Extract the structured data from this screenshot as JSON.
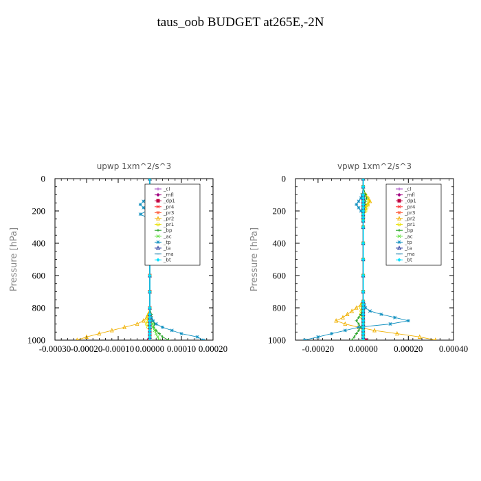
{
  "title": "taus_oob  BUDGET at265E,-2N",
  "chart_data": [
    {
      "type": "line",
      "title": "upwp   1xm^2/s^3",
      "ylabel": "Pressure [hPa]",
      "xlim": [
        -0.0003,
        0.0002
      ],
      "ylim": [
        1000,
        0
      ],
      "xticks": [
        -0.0003,
        -0.0002,
        -0.0001,
        0.0,
        0.0001,
        0.0002
      ],
      "xtick_labels": [
        "-0.00030",
        "-0.00020",
        "-0.00010",
        "0.00000",
        "0.00010",
        "0.00020"
      ],
      "yticks": [
        0,
        200,
        400,
        600,
        800,
        1000
      ],
      "ytick_labels": [
        "0",
        "200",
        "400",
        "600",
        "800",
        "1000"
      ],
      "legend_position": "top-right",
      "pressure": [
        0,
        50,
        100,
        120,
        140,
        160,
        180,
        200,
        220,
        240,
        260,
        300,
        350,
        400,
        500,
        600,
        700,
        800,
        840,
        860,
        880,
        900,
        920,
        940,
        960,
        980,
        1000
      ],
      "series": [
        {
          "name": "_cl",
          "color": "#a040c0",
          "marker": "+",
          "values": [
            0,
            0,
            0,
            0,
            0,
            0,
            0,
            0,
            0,
            0,
            0,
            0,
            0,
            0,
            0,
            0,
            0,
            0,
            0,
            0,
            0,
            0,
            0,
            0,
            0,
            0,
            0
          ]
        },
        {
          "name": "_mfl",
          "color": "#a00080",
          "marker": "diamond",
          "values": [
            0,
            0,
            0,
            0,
            0,
            0,
            0,
            0,
            0,
            0,
            0,
            0,
            0,
            0,
            0,
            0,
            0,
            0,
            0,
            0,
            0,
            0,
            0,
            0,
            0,
            0,
            0
          ]
        },
        {
          "name": "_dp1",
          "color": "#c00040",
          "marker": "square",
          "values": [
            0,
            0,
            0,
            0,
            0,
            0,
            0,
            0,
            0,
            0,
            0,
            0,
            0,
            0,
            0,
            0,
            0,
            0,
            0,
            0,
            0,
            0,
            0,
            0,
            0,
            0,
            -3e-06
          ]
        },
        {
          "name": "_pr4",
          "color": "#ff3030",
          "marker": "x",
          "values": [
            0,
            0,
            0,
            0,
            0,
            0,
            0,
            0,
            0,
            0,
            0,
            0,
            0,
            0,
            0,
            0,
            0,
            0,
            0,
            0,
            0,
            0,
            0,
            0,
            0,
            0,
            0
          ]
        },
        {
          "name": "_pr3",
          "color": "#ff6040",
          "marker": "star",
          "values": [
            0,
            0,
            0,
            0,
            0,
            0,
            0,
            0,
            0,
            0,
            0,
            0,
            0,
            0,
            0,
            0,
            0,
            0,
            0,
            0,
            0,
            0,
            0,
            0,
            0,
            0,
            0
          ]
        },
        {
          "name": "_pr2",
          "color": "#f0b000",
          "marker": "triangle",
          "values": [
            0,
            0,
            1e-05,
            1.5e-05,
            2e-05,
            1e-05,
            2e-05,
            1.5e-05,
            5e-06,
            2e-06,
            0,
            0,
            0,
            0,
            0,
            0,
            0,
            0,
            -5e-06,
            -1e-05,
            -2e-05,
            -4e-05,
            -8e-05,
            -0.00012,
            -0.00016,
            -0.0002,
            -0.00023
          ]
        },
        {
          "name": "_pr1",
          "color": "#e8e000",
          "marker": "circle",
          "values": [
            0,
            0,
            8e-06,
            1e-05,
            1.5e-05,
            2e-05,
            2.5e-05,
            2e-05,
            1e-05,
            5e-06,
            0,
            0,
            0,
            0,
            0,
            0,
            0,
            0,
            -3e-06,
            -5e-06,
            -8e-06,
            -1e-05,
            -5e-06,
            0,
            0,
            0,
            0
          ]
        },
        {
          "name": "_bp",
          "color": "#20a020",
          "marker": "+",
          "values": [
            0,
            0,
            1e-05,
            1.5e-05,
            1e-05,
            5e-06,
            8e-06,
            6e-06,
            3e-06,
            0,
            0,
            0,
            0,
            0,
            0,
            0,
            0,
            0,
            5e-06,
            5e-06,
            1e-05,
            1.5e-05,
            1.2e-05,
            2e-05,
            3e-05,
            4e-05,
            6e-05
          ]
        },
        {
          "name": "_ac",
          "color": "#60e040",
          "marker": "x",
          "values": [
            0,
            0,
            0,
            0,
            0,
            0,
            0,
            0,
            0,
            0,
            0,
            0,
            0,
            0,
            0,
            0,
            0,
            0,
            0,
            3e-06,
            5e-06,
            8e-06,
            1e-05,
            1.5e-05,
            2e-05,
            2.5e-05,
            3e-05
          ]
        },
        {
          "name": "_tp",
          "color": "#1090c0",
          "marker": "asterisk",
          "values": [
            0,
            0,
            -5e-06,
            -1e-05,
            -2e-05,
            -3e-05,
            -2e-05,
            -1e-05,
            -3e-05,
            -1e-05,
            0,
            0,
            0,
            0,
            0,
            0,
            0,
            0,
            0,
            5e-06,
            1e-05,
            2e-05,
            4e-05,
            7e-05,
            0.0001,
            0.00015,
            0.00017
          ]
        },
        {
          "name": "_ta",
          "color": "#3040a0",
          "marker": "triangle",
          "values": [
            0,
            0,
            0,
            0,
            0,
            0,
            0,
            0,
            0,
            0,
            0,
            0,
            0,
            0,
            0,
            0,
            0,
            0,
            0,
            0,
            0,
            0,
            0,
            0,
            0,
            0,
            0
          ]
        },
        {
          "name": "_ma",
          "color": "#0070a0",
          "marker": "dash",
          "values": [
            0,
            0,
            0,
            0,
            0,
            0,
            0,
            0,
            0,
            0,
            0,
            0,
            0,
            0,
            0,
            0,
            0,
            0,
            0,
            0,
            0,
            0,
            0,
            0,
            0,
            0,
            0
          ]
        },
        {
          "name": "_bt",
          "color": "#00e0ff",
          "marker": "diamond",
          "values": [
            0,
            0,
            0,
            0,
            0,
            0,
            0,
            0,
            0,
            0,
            0,
            0,
            0,
            0,
            0,
            0,
            0,
            0,
            0,
            0,
            0,
            0,
            0,
            0,
            0,
            0,
            0
          ]
        }
      ]
    },
    {
      "type": "line",
      "title": "vpwp   1xm^2/s^3",
      "ylabel": "Pressure [hPa]",
      "xlim": [
        -0.0003,
        0.0004
      ],
      "ylim": [
        1000,
        0
      ],
      "xticks": [
        -0.0002,
        0.0,
        0.0002,
        0.0004
      ],
      "xtick_labels": [
        "-0.00020",
        "0.00000",
        "0.00020",
        "0.00040"
      ],
      "yticks": [
        0,
        200,
        400,
        600,
        800,
        1000
      ],
      "ytick_labels": [
        "0",
        "200",
        "400",
        "600",
        "800",
        "1000"
      ],
      "legend_position": "top-right",
      "pressure": [
        0,
        50,
        100,
        120,
        140,
        160,
        180,
        200,
        220,
        240,
        260,
        300,
        400,
        500,
        600,
        700,
        760,
        780,
        800,
        820,
        840,
        860,
        880,
        900,
        920,
        940,
        960,
        980,
        1000
      ],
      "series": [
        {
          "name": "_cl",
          "color": "#a040c0",
          "marker": "+",
          "values": [
            0,
            0,
            0,
            0,
            0,
            0,
            0,
            0,
            0,
            0,
            0,
            0,
            0,
            0,
            0,
            0,
            0,
            0,
            0,
            0,
            0,
            0,
            0,
            0,
            0,
            0,
            0,
            0,
            0
          ]
        },
        {
          "name": "_mfl",
          "color": "#a00080",
          "marker": "diamond",
          "values": [
            0,
            0,
            0,
            0,
            0,
            0,
            0,
            0,
            0,
            0,
            0,
            0,
            0,
            0,
            0,
            0,
            0,
            0,
            0,
            0,
            0,
            0,
            0,
            0,
            0,
            0,
            0,
            0,
            0
          ]
        },
        {
          "name": "_dp1",
          "color": "#c00040",
          "marker": "square",
          "values": [
            0,
            0,
            0,
            0,
            0,
            0,
            0,
            0,
            0,
            0,
            0,
            0,
            0,
            0,
            0,
            0,
            0,
            0,
            0,
            0,
            0,
            0,
            0,
            0,
            0,
            0,
            0,
            0,
            1e-05
          ]
        },
        {
          "name": "_pr4",
          "color": "#ff3030",
          "marker": "x",
          "values": [
            0,
            0,
            0,
            0,
            0,
            0,
            0,
            0,
            0,
            0,
            0,
            0,
            0,
            0,
            0,
            0,
            0,
            0,
            0,
            0,
            0,
            0,
            0,
            0,
            0,
            0,
            0,
            0,
            0
          ]
        },
        {
          "name": "_pr3",
          "color": "#ff6040",
          "marker": "star",
          "values": [
            0,
            0,
            0,
            0,
            0,
            0,
            0,
            0,
            0,
            0,
            0,
            0,
            0,
            0,
            0,
            0,
            0,
            0,
            0,
            0,
            0,
            0,
            0,
            0,
            0,
            0,
            0,
            0,
            0
          ]
        },
        {
          "name": "_pr2",
          "color": "#f0b000",
          "marker": "triangle",
          "values": [
            0,
            0,
            1e-05,
            2e-05,
            3e-05,
            2e-05,
            1e-05,
            5e-06,
            0,
            0,
            0,
            0,
            0,
            0,
            0,
            0,
            0,
            -1e-05,
            -3e-05,
            -5e-05,
            -7e-05,
            -9e-05,
            -0.00012,
            -8e-05,
            -2e-05,
            5e-05,
            0.00015,
            0.00025,
            0.00032
          ]
        },
        {
          "name": "_pr1",
          "color": "#e8e000",
          "marker": "circle",
          "values": [
            0,
            0,
            1e-05,
            2e-05,
            2.5e-05,
            2e-05,
            1.5e-05,
            1e-05,
            0,
            0,
            0,
            0,
            0,
            0,
            0,
            0,
            0,
            -5e-06,
            -1e-05,
            -8e-06,
            -1e-05,
            -5e-06,
            0,
            0,
            0,
            0,
            0,
            0,
            0
          ]
        },
        {
          "name": "_bp",
          "color": "#20a020",
          "marker": "+",
          "values": [
            0,
            0,
            1e-05,
            1.5e-05,
            1e-05,
            8e-06,
            5e-06,
            3e-06,
            0,
            0,
            0,
            0,
            0,
            0,
            0,
            0,
            0,
            0,
            0,
            -5e-06,
            -1e-05,
            -2e-05,
            -3e-05,
            -2e-05,
            -1e-05,
            -2e-05,
            -3e-05,
            -4e-05,
            -5e-05
          ]
        },
        {
          "name": "_ac",
          "color": "#60e040",
          "marker": "x",
          "values": [
            0,
            0,
            0,
            0,
            0,
            0,
            0,
            0,
            0,
            0,
            0,
            0,
            0,
            0,
            0,
            0,
            0,
            0,
            0,
            0,
            0,
            0,
            0,
            0,
            0,
            0,
            0,
            0,
            0
          ]
        },
        {
          "name": "_tp",
          "color": "#1090c0",
          "marker": "asterisk",
          "values": [
            0,
            0,
            -5e-06,
            -1e-05,
            -2e-05,
            -3e-05,
            -2e-05,
            -1e-05,
            0,
            0,
            0,
            0,
            0,
            0,
            0,
            0,
            0,
            5e-06,
            1e-05,
            3e-05,
            8e-05,
            0.00014,
            0.0002,
            0.00012,
            -2e-05,
            -8e-05,
            -0.00014,
            -0.0002,
            -0.00026
          ]
        },
        {
          "name": "_ta",
          "color": "#3040a0",
          "marker": "triangle",
          "values": [
            0,
            0,
            0,
            0,
            0,
            0,
            0,
            0,
            0,
            0,
            0,
            0,
            0,
            0,
            0,
            0,
            0,
            0,
            0,
            0,
            0,
            0,
            0,
            0,
            0,
            0,
            0,
            0,
            0
          ]
        },
        {
          "name": "_ma",
          "color": "#0070a0",
          "marker": "dash",
          "values": [
            0,
            0,
            0,
            0,
            0,
            0,
            0,
            0,
            0,
            0,
            0,
            0,
            0,
            0,
            0,
            0,
            0,
            0,
            0,
            0,
            0,
            0,
            0,
            0,
            0,
            0,
            0,
            0,
            0
          ]
        },
        {
          "name": "_bt",
          "color": "#00e0ff",
          "marker": "diamond",
          "values": [
            0,
            0,
            0,
            0,
            0,
            0,
            0,
            0,
            0,
            0,
            0,
            0,
            0,
            0,
            0,
            0,
            0,
            0,
            0,
            0,
            0,
            0,
            0,
            0,
            0,
            0,
            0,
            0,
            0
          ]
        }
      ]
    }
  ]
}
